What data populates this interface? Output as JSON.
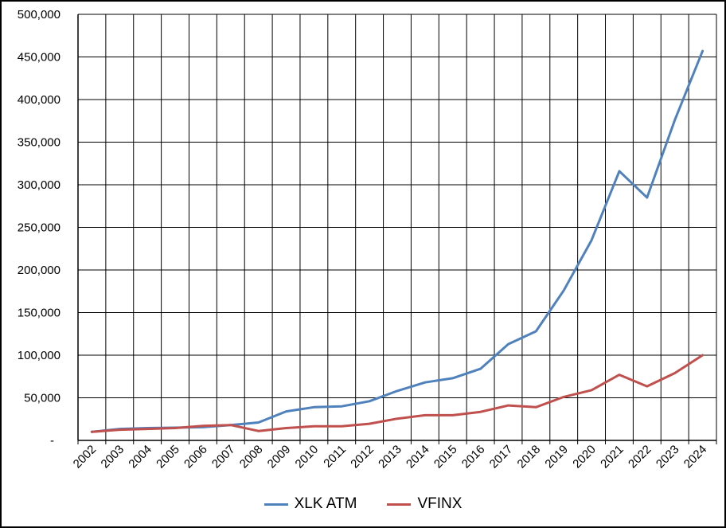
{
  "chart_data": {
    "type": "line",
    "title": "",
    "xlabel": "",
    "ylabel": "",
    "categories": [
      "2002",
      "2003",
      "2004",
      "2005",
      "2006",
      "2007",
      "2008",
      "2009",
      "2010",
      "2011",
      "2012",
      "2013",
      "2014",
      "2015",
      "2016",
      "2017",
      "2018",
      "2019",
      "2020",
      "2021",
      "2022",
      "2023",
      "2024"
    ],
    "ylim": [
      0,
      500000
    ],
    "yticks": [
      0,
      50000,
      100000,
      150000,
      200000,
      250000,
      300000,
      350000,
      400000,
      450000,
      500000
    ],
    "ytick_labels": [
      "-",
      "50,000",
      "100,000",
      "150,000",
      "200,000",
      "250,000",
      "300,000",
      "350,000",
      "400,000",
      "450,000",
      "500,000"
    ],
    "grid": true,
    "legend_position": "bottom",
    "series": [
      {
        "name": "XLK ATM",
        "color": "#4F81BD",
        "values": [
          10000,
          13500,
          14500,
          15000,
          15500,
          18000,
          21000,
          34000,
          39000,
          40000,
          46000,
          58000,
          68000,
          73000,
          84000,
          113000,
          128000,
          176000,
          235000,
          316000,
          285000,
          376000,
          457000
        ]
      },
      {
        "name": "VFINX",
        "color": "#C0504D",
        "values": [
          10000,
          12500,
          13500,
          14500,
          17000,
          18000,
          11000,
          14500,
          16500,
          16500,
          19500,
          25500,
          29500,
          29500,
          33500,
          41000,
          39000,
          51000,
          59000,
          77000,
          63500,
          79000,
          100000
        ]
      }
    ]
  }
}
